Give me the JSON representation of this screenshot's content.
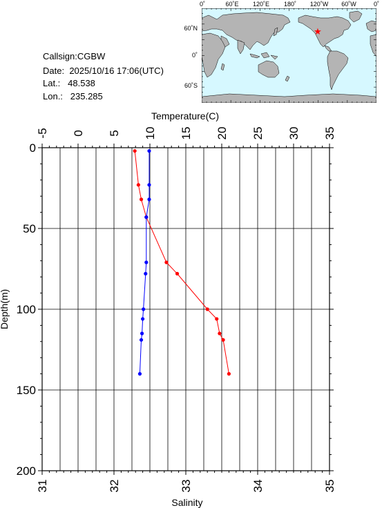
{
  "station": {
    "callsign_label": "Callsign:",
    "callsign": "CGBW",
    "date_label": "Date:",
    "date": "2025/10/16 17:06(UTC)",
    "lat_label": "Lat.:",
    "lat": "48.538",
    "lon_label": "Lon.:",
    "lon": "235.285"
  },
  "map": {
    "top_labels": [
      "0˚",
      "60˚E",
      "120˚E",
      "180˚",
      "120˚W",
      "60˚W",
      "0˚"
    ],
    "side_labels": [
      "60˚N",
      "0˚",
      "60˚S"
    ],
    "ocean_color": "#d6f8ff",
    "land_color": "#b4b4b4",
    "marker_color": "#ff0000",
    "marker_symbol": "★"
  },
  "chart_data": {
    "type": "scatter",
    "y_axis": {
      "label": "Depth(m)",
      "range": [
        0,
        200
      ],
      "ticks": [
        "0",
        "50",
        "100",
        "150",
        "200"
      ],
      "inverted": true
    },
    "top_axis": {
      "label": "Temperature(C)",
      "range": [
        -5,
        35
      ],
      "ticks": [
        "-5",
        "0",
        "5",
        "10",
        "15",
        "20",
        "25",
        "30",
        "35"
      ]
    },
    "bottom_axis": {
      "label": "Salinity",
      "range": [
        31,
        35
      ],
      "ticks": [
        "31",
        "32",
        "33",
        "34",
        "35"
      ]
    },
    "grid": true,
    "series": [
      {
        "key": "temperature",
        "axis": "top",
        "color": "#ff0000",
        "points": [
          {
            "x": 7.9,
            "depth": 2
          },
          {
            "x": 8.4,
            "depth": 23
          },
          {
            "x": 8.8,
            "depth": 32
          },
          {
            "x": 9.5,
            "depth": 43
          },
          {
            "x": 12.3,
            "depth": 71
          },
          {
            "x": 13.8,
            "depth": 78
          },
          {
            "x": 18.0,
            "depth": 100
          },
          {
            "x": 19.3,
            "depth": 106
          },
          {
            "x": 19.7,
            "depth": 115
          },
          {
            "x": 20.2,
            "depth": 119
          },
          {
            "x": 21.0,
            "depth": 140
          }
        ]
      },
      {
        "key": "salinity",
        "axis": "bottom",
        "color": "#0000ff",
        "points": [
          {
            "x": 32.49,
            "depth": 2
          },
          {
            "x": 32.49,
            "depth": 23
          },
          {
            "x": 32.49,
            "depth": 32
          },
          {
            "x": 32.45,
            "depth": 43
          },
          {
            "x": 32.45,
            "depth": 71
          },
          {
            "x": 32.44,
            "depth": 78
          },
          {
            "x": 32.41,
            "depth": 100
          },
          {
            "x": 32.4,
            "depth": 106
          },
          {
            "x": 32.39,
            "depth": 115
          },
          {
            "x": 32.38,
            "depth": 119
          },
          {
            "x": 32.36,
            "depth": 140
          }
        ]
      }
    ]
  }
}
